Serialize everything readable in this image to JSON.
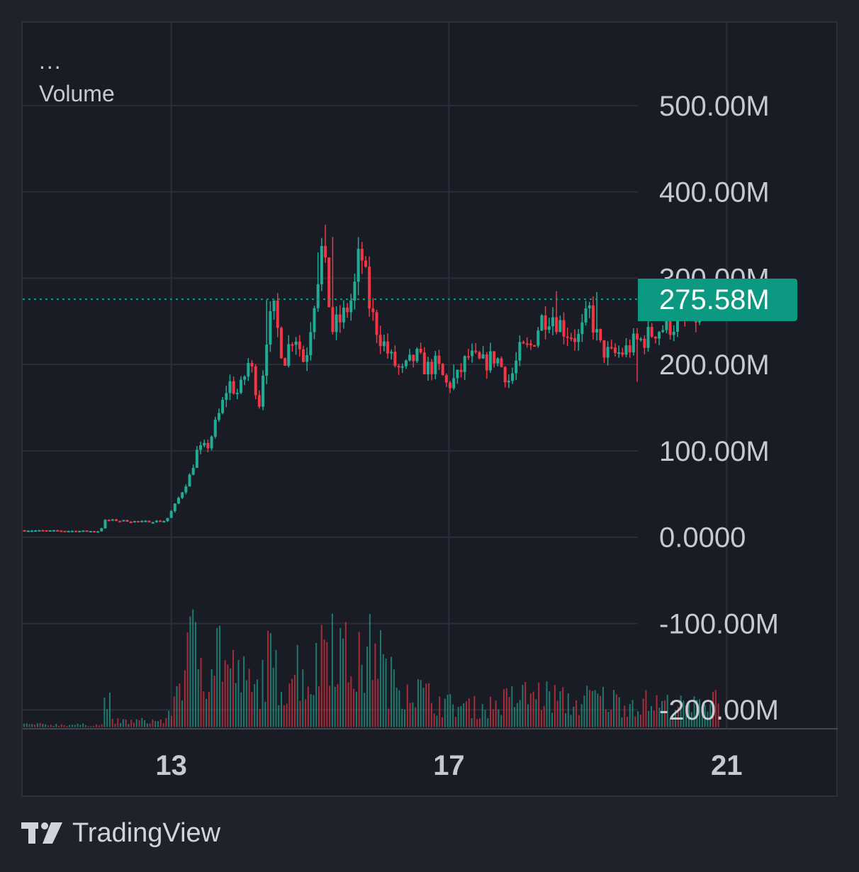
{
  "legend": {
    "menu_dots": "...",
    "indicator": "Volume"
  },
  "last_price": {
    "label": "275.58M",
    "value": 275.58
  },
  "brand": {
    "name": "TradingView",
    "icon": "tradingview-logo-icon"
  },
  "colors": {
    "background": "#1a1c25",
    "grid": "#2a2e39",
    "up": "#22ab94",
    "down": "#f23645",
    "axis_text": "#c7c9d1",
    "badge": "#0b9981"
  },
  "chart_data": {
    "type": "candlestick",
    "title": "",
    "unit": "M",
    "y_ticks": [
      {
        "value": 500,
        "label": "500.00M"
      },
      {
        "value": 400,
        "label": "400.00M"
      },
      {
        "value": 300,
        "label": "300.00M"
      },
      {
        "value": 200,
        "label": "200.00M"
      },
      {
        "value": 100,
        "label": "100.00M"
      },
      {
        "value": 0,
        "label": "0.0000"
      },
      {
        "value": -100,
        "label": "-100.00M"
      },
      {
        "value": -200,
        "label": "-200.00M"
      }
    ],
    "x_ticks": [
      {
        "day": 13,
        "label": "13"
      },
      {
        "day": 17,
        "label": "17"
      },
      {
        "day": 21,
        "label": "21"
      }
    ],
    "x_range": [
      10.86,
      22.6
    ],
    "y_range": [
      -222,
      596
    ],
    "grid": true,
    "last_value_line": 275.58,
    "price_path": [
      [
        10.86,
        8
      ],
      [
        12.0,
        7
      ],
      [
        12.08,
        20
      ],
      [
        12.6,
        18
      ],
      [
        12.95,
        19
      ],
      [
        13.1,
        40
      ],
      [
        13.3,
        72
      ],
      [
        13.4,
        100
      ],
      [
        13.55,
        105
      ],
      [
        13.75,
        150
      ],
      [
        13.85,
        180
      ],
      [
        14.0,
        165
      ],
      [
        14.15,
        205
      ],
      [
        14.3,
        155
      ],
      [
        14.4,
        235
      ],
      [
        14.5,
        262
      ],
      [
        14.65,
        205
      ],
      [
        14.8,
        240
      ],
      [
        14.95,
        200
      ],
      [
        15.1,
        285
      ],
      [
        15.2,
        335
      ],
      [
        15.35,
        240
      ],
      [
        15.5,
        255
      ],
      [
        15.65,
        280
      ],
      [
        15.75,
        335
      ],
      [
        15.9,
        260
      ],
      [
        16.05,
        230
      ],
      [
        16.2,
        205
      ],
      [
        16.35,
        190
      ],
      [
        16.55,
        210
      ],
      [
        16.7,
        195
      ],
      [
        16.85,
        200
      ],
      [
        17.0,
        175
      ],
      [
        17.15,
        185
      ],
      [
        17.3,
        210
      ],
      [
        17.5,
        200
      ],
      [
        17.7,
        210
      ],
      [
        17.9,
        180
      ],
      [
        18.05,
        215
      ],
      [
        18.2,
        220
      ],
      [
        18.35,
        252
      ],
      [
        18.5,
        260
      ],
      [
        18.7,
        240
      ],
      [
        18.9,
        230
      ],
      [
        19.05,
        262
      ],
      [
        19.2,
        220
      ],
      [
        19.35,
        210
      ],
      [
        19.55,
        215
      ],
      [
        19.7,
        225
      ],
      [
        19.85,
        230
      ],
      [
        20.0,
        240
      ],
      [
        20.2,
        245
      ],
      [
        20.45,
        252
      ],
      [
        20.6,
        255
      ],
      [
        20.8,
        262
      ],
      [
        20.9,
        276
      ]
    ],
    "price_spikes": [
      [
        14.4,
        275
      ],
      [
        14.6,
        230
      ],
      [
        14.95,
        215
      ],
      [
        15.12,
        330
      ],
      [
        15.22,
        362
      ],
      [
        15.3,
        348
      ],
      [
        15.75,
        333
      ],
      [
        15.85,
        290
      ],
      [
        16.2,
        222
      ],
      [
        16.45,
        218
      ],
      [
        17.05,
        200
      ],
      [
        18.55,
        285
      ],
      [
        19.15,
        284
      ],
      [
        19.7,
        180
      ],
      [
        20.3,
        250
      ],
      [
        20.9,
        280
      ]
    ],
    "volume_peaks": [
      [
        10.86,
        5
      ],
      [
        12.0,
        4
      ],
      [
        12.07,
        85
      ],
      [
        12.15,
        10
      ],
      [
        12.95,
        12
      ],
      [
        13.05,
        60
      ],
      [
        13.15,
        100
      ],
      [
        13.35,
        160
      ],
      [
        13.5,
        110
      ],
      [
        13.7,
        155
      ],
      [
        13.8,
        105
      ],
      [
        14.0,
        95
      ],
      [
        14.2,
        60
      ],
      [
        14.4,
        120
      ],
      [
        14.6,
        75
      ],
      [
        14.8,
        115
      ],
      [
        15.0,
        80
      ],
      [
        15.1,
        110
      ],
      [
        15.2,
        175
      ],
      [
        15.3,
        190
      ],
      [
        15.45,
        140
      ],
      [
        15.6,
        110
      ],
      [
        15.8,
        115
      ],
      [
        15.95,
        170
      ],
      [
        16.1,
        85
      ],
      [
        16.4,
        80
      ],
      [
        16.7,
        55
      ],
      [
        17.0,
        40
      ],
      [
        17.5,
        35
      ],
      [
        18.0,
        55
      ],
      [
        18.2,
        60
      ],
      [
        18.5,
        55
      ],
      [
        18.8,
        40
      ],
      [
        19.05,
        55
      ],
      [
        19.5,
        45
      ],
      [
        19.8,
        45
      ],
      [
        20.2,
        40
      ],
      [
        20.5,
        35
      ],
      [
        20.75,
        50
      ],
      [
        20.8,
        70
      ],
      [
        20.9,
        40
      ]
    ],
    "volume_base": -220
  }
}
